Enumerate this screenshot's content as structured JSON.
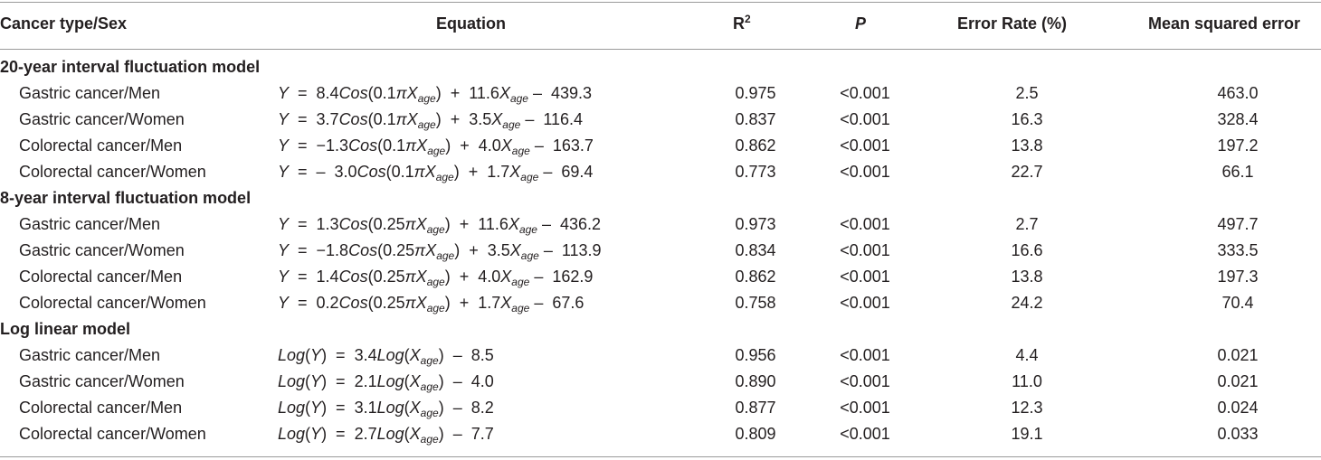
{
  "headers": {
    "cancer": "Cancer type/Sex",
    "equation": "Equation",
    "r2_base": "R",
    "r2_sup": "2",
    "p": "P",
    "error_rate": "Error Rate (%)",
    "mse": "Mean squared error"
  },
  "sections": [
    {
      "title": "20-year interval fluctuation model",
      "rows": [
        {
          "label": "Gastric cancer/Men",
          "eq": [
            {
              "t": "Y",
              "i": true
            },
            {
              "t": "  =  8.4"
            },
            {
              "t": "Cos",
              "i": true
            },
            {
              "t": "(0.1"
            },
            {
              "t": "πX",
              "i": true
            },
            {
              "t": "age",
              "s": true
            },
            {
              "t": ")  +  11.6"
            },
            {
              "t": "X",
              "i": true
            },
            {
              "t": "age",
              "s": true
            },
            {
              "t": " –  439.3"
            }
          ],
          "r2": "0.975",
          "p": "<0.001",
          "er": "2.5",
          "mse": "463.0"
        },
        {
          "label": "Gastric cancer/Women",
          "eq": [
            {
              "t": "Y",
              "i": true
            },
            {
              "t": "  =  3.7"
            },
            {
              "t": "Cos",
              "i": true
            },
            {
              "t": "(0.1"
            },
            {
              "t": "πX",
              "i": true
            },
            {
              "t": "age",
              "s": true
            },
            {
              "t": ")  +  3.5"
            },
            {
              "t": "X",
              "i": true
            },
            {
              "t": "age",
              "s": true
            },
            {
              "t": " –  116.4"
            }
          ],
          "r2": "0.837",
          "p": "<0.001",
          "er": "16.3",
          "mse": "328.4"
        },
        {
          "label": "Colorectal cancer/Men",
          "eq": [
            {
              "t": "Y",
              "i": true
            },
            {
              "t": "  =  −1.3"
            },
            {
              "t": "Cos",
              "i": true
            },
            {
              "t": "(0.1"
            },
            {
              "t": "πX",
              "i": true
            },
            {
              "t": "age",
              "s": true
            },
            {
              "t": ")  +  4.0"
            },
            {
              "t": "X",
              "i": true
            },
            {
              "t": "age",
              "s": true
            },
            {
              "t": " –  163.7"
            }
          ],
          "r2": "0.862",
          "p": "<0.001",
          "er": "13.8",
          "mse": "197.2"
        },
        {
          "label": "Colorectal cancer/Women",
          "eq": [
            {
              "t": "Y",
              "i": true
            },
            {
              "t": "  =  –  3.0"
            },
            {
              "t": "Cos",
              "i": true
            },
            {
              "t": "(0.1"
            },
            {
              "t": "πX",
              "i": true
            },
            {
              "t": "age",
              "s": true
            },
            {
              "t": ")  +  1.7"
            },
            {
              "t": "X",
              "i": true
            },
            {
              "t": "age",
              "s": true
            },
            {
              "t": " –  69.4"
            }
          ],
          "r2": "0.773",
          "p": "<0.001",
          "er": "22.7",
          "mse": "66.1"
        }
      ]
    },
    {
      "title": "8-year interval fluctuation model",
      "rows": [
        {
          "label": "Gastric cancer/Men",
          "eq": [
            {
              "t": "Y",
              "i": true
            },
            {
              "t": "  =  1.3"
            },
            {
              "t": "Cos",
              "i": true
            },
            {
              "t": "(0.25"
            },
            {
              "t": "πX",
              "i": true
            },
            {
              "t": "age",
              "s": true
            },
            {
              "t": ")  +  11.6"
            },
            {
              "t": "X",
              "i": true
            },
            {
              "t": "age",
              "s": true
            },
            {
              "t": " –  436.2"
            }
          ],
          "r2": "0.973",
          "p": "<0.001",
          "er": "2.7",
          "mse": "497.7"
        },
        {
          "label": "Gastric cancer/Women",
          "eq": [
            {
              "t": "Y",
              "i": true
            },
            {
              "t": "  =  −1.8"
            },
            {
              "t": "Cos",
              "i": true
            },
            {
              "t": "(0.25"
            },
            {
              "t": "πX",
              "i": true
            },
            {
              "t": "age",
              "s": true
            },
            {
              "t": ")  +  3.5"
            },
            {
              "t": "X",
              "i": true
            },
            {
              "t": "age",
              "s": true
            },
            {
              "t": " –  113.9"
            }
          ],
          "r2": "0.834",
          "p": "<0.001",
          "er": "16.6",
          "mse": "333.5"
        },
        {
          "label": "Colorectal cancer/Men",
          "eq": [
            {
              "t": "Y",
              "i": true
            },
            {
              "t": "  =  1.4"
            },
            {
              "t": "Cos",
              "i": true
            },
            {
              "t": "(0.25"
            },
            {
              "t": "πX",
              "i": true
            },
            {
              "t": "age",
              "s": true
            },
            {
              "t": ")  +  4.0"
            },
            {
              "t": "X",
              "i": true
            },
            {
              "t": "age",
              "s": true
            },
            {
              "t": " –  162.9"
            }
          ],
          "r2": "0.862",
          "p": "<0.001",
          "er": "13.8",
          "mse": "197.3"
        },
        {
          "label": "Colorectal cancer/Women",
          "eq": [
            {
              "t": "Y",
              "i": true
            },
            {
              "t": "  =  0.2"
            },
            {
              "t": "Cos",
              "i": true
            },
            {
              "t": "(0.25"
            },
            {
              "t": "πX",
              "i": true
            },
            {
              "t": "age",
              "s": true
            },
            {
              "t": ")  +  1.7"
            },
            {
              "t": "X",
              "i": true
            },
            {
              "t": "age",
              "s": true
            },
            {
              "t": " –  67.6"
            }
          ],
          "r2": "0.758",
          "p": "<0.001",
          "er": "24.2",
          "mse": "70.4"
        }
      ]
    },
    {
      "title": "Log linear model",
      "rows": [
        {
          "label": "Gastric cancer/Men",
          "eq": [
            {
              "t": "Log",
              "i": true
            },
            {
              "t": "("
            },
            {
              "t": "Y",
              "i": true
            },
            {
              "t": ")  =  3.4"
            },
            {
              "t": "Log",
              "i": true
            },
            {
              "t": "("
            },
            {
              "t": "X",
              "i": true
            },
            {
              "t": "age",
              "s": true
            },
            {
              "t": ")  –  8.5"
            }
          ],
          "r2": "0.956",
          "p": "<0.001",
          "er": "4.4",
          "mse": "0.021"
        },
        {
          "label": "Gastric cancer/Women",
          "eq": [
            {
              "t": "Log",
              "i": true
            },
            {
              "t": "("
            },
            {
              "t": "Y",
              "i": true
            },
            {
              "t": ")  =  2.1"
            },
            {
              "t": "Log",
              "i": true
            },
            {
              "t": "("
            },
            {
              "t": "X",
              "i": true
            },
            {
              "t": "age",
              "s": true
            },
            {
              "t": ")  –  4.0"
            }
          ],
          "r2": "0.890",
          "p": "<0.001",
          "er": "11.0",
          "mse": "0.021"
        },
        {
          "label": "Colorectal cancer/Men",
          "eq": [
            {
              "t": "Log",
              "i": true
            },
            {
              "t": "("
            },
            {
              "t": "Y",
              "i": true
            },
            {
              "t": ")  =  3.1"
            },
            {
              "t": "Log",
              "i": true
            },
            {
              "t": "("
            },
            {
              "t": "X",
              "i": true
            },
            {
              "t": "age",
              "s": true
            },
            {
              "t": ")  –  8.2"
            }
          ],
          "r2": "0.877",
          "p": "<0.001",
          "er": "12.3",
          "mse": "0.024"
        },
        {
          "label": "Colorectal cancer/Women",
          "eq": [
            {
              "t": "Log",
              "i": true
            },
            {
              "t": "("
            },
            {
              "t": "Y",
              "i": true
            },
            {
              "t": ")  =  2.7"
            },
            {
              "t": "Log",
              "i": true
            },
            {
              "t": "("
            },
            {
              "t": "X",
              "i": true
            },
            {
              "t": "age",
              "s": true
            },
            {
              "t": ")  –  7.7"
            }
          ],
          "r2": "0.809",
          "p": "<0.001",
          "er": "19.1",
          "mse": "0.033"
        }
      ]
    }
  ]
}
